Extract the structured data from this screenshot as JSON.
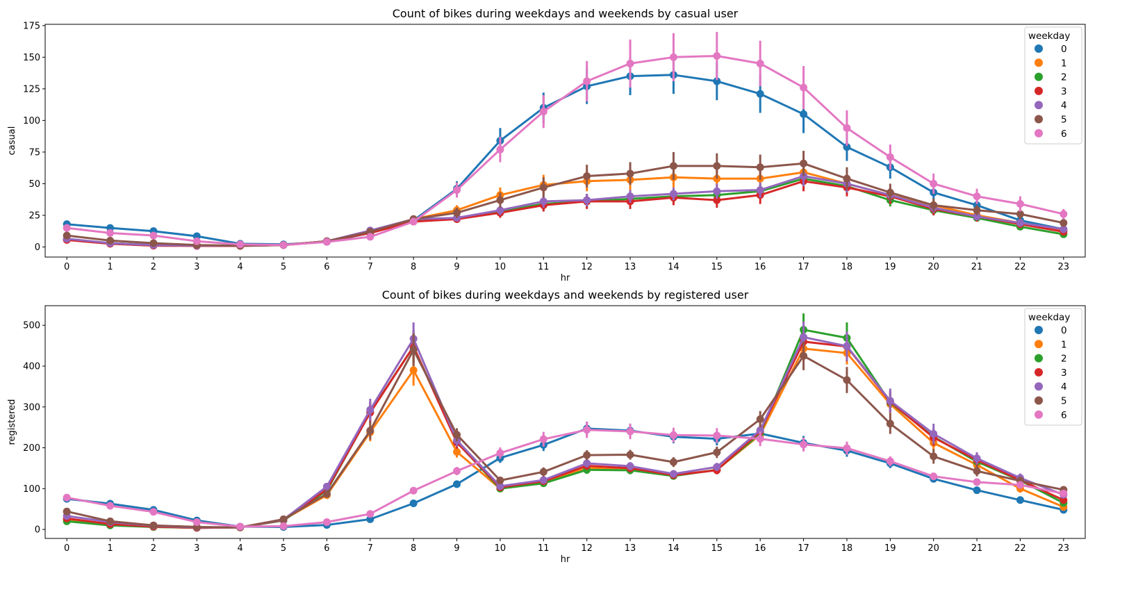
{
  "chart_data": [
    {
      "type": "line",
      "title": "Count of bikes during weekdays and weekends by casual user",
      "xlabel": "hr",
      "ylabel": "casual",
      "categories": [
        "0",
        "1",
        "2",
        "3",
        "4",
        "5",
        "6",
        "7",
        "8",
        "9",
        "10",
        "11",
        "12",
        "13",
        "14",
        "15",
        "16",
        "17",
        "18",
        "19",
        "20",
        "21",
        "22",
        "23"
      ],
      "ylim": [
        -8,
        176
      ],
      "yticks": [
        "0",
        "25",
        "50",
        "75",
        "100",
        "125",
        "150",
        "175"
      ],
      "grid": false,
      "legend": {
        "title": "weekday",
        "position": "top-right"
      },
      "series": [
        {
          "name": "0",
          "color": "#1f77b4",
          "values": [
            18,
            15,
            12.5,
            8.5,
            2.5,
            2,
            4,
            11,
            21,
            46,
            84,
            110,
            127,
            135,
            136,
            131,
            121,
            105,
            79,
            63,
            43,
            33,
            21,
            14
          ],
          "err": [
            2,
            1.5,
            1.5,
            1.5,
            0.8,
            0.8,
            1,
            2,
            3,
            6,
            10,
            12,
            14,
            15,
            15,
            15,
            15,
            15,
            11,
            9,
            6,
            5,
            4,
            3
          ]
        },
        {
          "name": "1",
          "color": "#ff7f0e",
          "values": [
            6,
            3,
            1.5,
            1,
            1,
            1.5,
            4.5,
            12,
            22,
            29,
            41,
            49,
            52,
            53,
            55,
            54,
            54,
            59,
            50,
            41,
            33,
            25,
            19,
            13
          ],
          "err": [
            1,
            1,
            0.6,
            0.5,
            0.5,
            0.5,
            0.8,
            2,
            3,
            4,
            6,
            8,
            8,
            8,
            8,
            8,
            8,
            9,
            8,
            6,
            5,
            4,
            3,
            2
          ]
        },
        {
          "name": "2",
          "color": "#2ca02c",
          "values": [
            6,
            3,
            1.5,
            1,
            1,
            1.5,
            4.5,
            11,
            21,
            23,
            28,
            34,
            36,
            38,
            40,
            41,
            44,
            54,
            48,
            37,
            29,
            23,
            16,
            10
          ],
          "err": [
            1,
            1,
            0.6,
            0.5,
            0.5,
            0.5,
            0.8,
            2,
            3,
            3,
            4,
            5,
            5,
            5,
            5,
            5,
            6,
            7,
            6,
            5,
            4,
            3,
            2,
            2
          ]
        },
        {
          "name": "3",
          "color": "#d62728",
          "values": [
            5.5,
            2.5,
            1,
            0.8,
            0.8,
            1.5,
            4.5,
            11,
            20,
            22,
            27,
            33,
            36,
            36,
            39,
            37,
            41,
            52,
            47,
            40,
            30,
            24,
            18,
            12
          ],
          "err": [
            1,
            1,
            0.6,
            0.5,
            0.5,
            0.5,
            0.8,
            2,
            3,
            3,
            4,
            5,
            6,
            6,
            6,
            6,
            7,
            8,
            7,
            6,
            5,
            4,
            3,
            2
          ]
        },
        {
          "name": "4",
          "color": "#9467bd",
          "values": [
            6.5,
            3,
            1.5,
            1,
            1,
            1.5,
            4.5,
            13,
            22,
            23,
            29,
            36,
            37,
            40,
            42,
            44,
            45,
            56,
            50,
            41,
            31,
            24,
            19,
            14
          ],
          "err": [
            1,
            1,
            0.6,
            0.5,
            0.5,
            0.5,
            0.8,
            2,
            3,
            3,
            4,
            5,
            5,
            5,
            5,
            6,
            6,
            8,
            7,
            5,
            4,
            3,
            3,
            2
          ]
        },
        {
          "name": "5",
          "color": "#8c564b",
          "values": [
            9,
            5,
            3,
            1.5,
            1,
            1.5,
            4.5,
            12,
            22,
            27,
            37,
            47,
            56,
            58,
            64,
            64,
            63,
            66,
            54,
            43,
            33,
            29,
            26,
            19
          ],
          "err": [
            1.5,
            1,
            0.8,
            0.6,
            0.5,
            0.5,
            0.8,
            2,
            3,
            4,
            6,
            8,
            9,
            9,
            11,
            10,
            10,
            10,
            9,
            7,
            5,
            4,
            4,
            3
          ]
        },
        {
          "name": "6",
          "color": "#e377c2",
          "values": [
            15,
            11,
            9,
            4.5,
            2,
            1.5,
            4,
            8,
            20,
            45,
            77,
            107,
            131,
            145,
            150,
            151,
            145,
            126,
            94,
            71,
            50,
            40,
            34,
            26
          ],
          "err": [
            2,
            2,
            1.5,
            1,
            0.8,
            0.8,
            1,
            2,
            3,
            6,
            10,
            13,
            16,
            19,
            19,
            19,
            18,
            17,
            14,
            10,
            8,
            6,
            6,
            4
          ]
        }
      ]
    },
    {
      "type": "line",
      "title": "Count of bikes during weekdays and weekends by registered user",
      "xlabel": "hr",
      "ylabel": "registered",
      "categories": [
        "0",
        "1",
        "2",
        "3",
        "4",
        "5",
        "6",
        "7",
        "8",
        "9",
        "10",
        "11",
        "12",
        "13",
        "14",
        "15",
        "16",
        "17",
        "18",
        "19",
        "20",
        "21",
        "22",
        "23"
      ],
      "ylim": [
        -22,
        548
      ],
      "yticks": [
        "0",
        "100",
        "200",
        "300",
        "400",
        "500"
      ],
      "grid": false,
      "legend": {
        "title": "weekday",
        "position": "top-right"
      },
      "series": [
        {
          "name": "0",
          "color": "#1f77b4",
          "values": [
            75,
            63,
            48,
            22,
            7,
            6,
            11,
            25,
            64,
            111,
            175,
            207,
            247,
            242,
            227,
            222,
            235,
            212,
            193,
            162,
            124,
            96,
            72,
            48
          ],
          "err": [
            5,
            4,
            4,
            3,
            1,
            1,
            2,
            3,
            5,
            9,
            12,
            15,
            17,
            17,
            16,
            16,
            18,
            17,
            15,
            12,
            9,
            7,
            6,
            4
          ]
        },
        {
          "name": "1",
          "color": "#ff7f0e",
          "values": [
            24,
            12,
            6,
            4,
            5,
            24,
            84,
            238,
            390,
            190,
            100,
            115,
            150,
            150,
            132,
            146,
            232,
            443,
            432,
            307,
            212,
            158,
            100,
            55
          ],
          "err": [
            4,
            2,
            1,
            1,
            1,
            3,
            8,
            22,
            38,
            14,
            8,
            9,
            10,
            10,
            9,
            10,
            16,
            30,
            28,
            24,
            18,
            12,
            10,
            6
          ]
        },
        {
          "name": "2",
          "color": "#2ca02c",
          "values": [
            20,
            10,
            6,
            4,
            5,
            22,
            95,
            287,
            448,
            214,
            100,
            113,
            146,
            145,
            131,
            146,
            235,
            489,
            469,
            311,
            227,
            166,
            120,
            65
          ],
          "err": [
            4,
            2,
            1,
            1,
            1,
            3,
            8,
            25,
            40,
            15,
            8,
            9,
            10,
            10,
            9,
            10,
            16,
            40,
            38,
            26,
            20,
            15,
            11,
            7
          ]
        },
        {
          "name": "3",
          "color": "#d62728",
          "values": [
            27,
            13,
            7,
            4,
            5,
            23,
            98,
            286,
            448,
            213,
            103,
            118,
            156,
            150,
            133,
            145,
            240,
            460,
            448,
            313,
            225,
            170,
            121,
            72
          ],
          "err": [
            4,
            2,
            1,
            1,
            1,
            3,
            8,
            25,
            40,
            15,
            8,
            9,
            10,
            10,
            9,
            10,
            16,
            38,
            36,
            26,
            20,
            15,
            11,
            7
          ]
        },
        {
          "name": "4",
          "color": "#9467bd",
          "values": [
            33,
            18,
            9,
            5,
            5,
            24,
            105,
            293,
            467,
            218,
            106,
            121,
            162,
            155,
            136,
            153,
            243,
            471,
            449,
            315,
            234,
            174,
            126,
            85
          ],
          "err": [
            4,
            2,
            1,
            1,
            1,
            3,
            8,
            27,
            40,
            15,
            8,
            9,
            10,
            10,
            9,
            10,
            16,
            38,
            36,
            30,
            25,
            15,
            11,
            7
          ]
        },
        {
          "name": "5",
          "color": "#8c564b",
          "values": [
            44,
            20,
            10,
            6,
            5,
            25,
            87,
            242,
            440,
            232,
            120,
            141,
            182,
            183,
            165,
            189,
            270,
            425,
            366,
            259,
            179,
            143,
            119,
            97
          ],
          "err": [
            5,
            3,
            1.5,
            1,
            1,
            3,
            8,
            22,
            40,
            16,
            9,
            11,
            12,
            12,
            12,
            14,
            20,
            35,
            32,
            25,
            18,
            13,
            10,
            8
          ]
        },
        {
          "name": "6",
          "color": "#e377c2",
          "values": [
            78,
            58,
            43,
            18,
            7,
            8,
            18,
            38,
            95,
            143,
            187,
            221,
            244,
            240,
            231,
            230,
            222,
            208,
            199,
            167,
            130,
            116,
            109,
            88
          ],
          "err": [
            5,
            4,
            3,
            2,
            1,
            1,
            2,
            3,
            6,
            10,
            14,
            18,
            20,
            19,
            18,
            18,
            18,
            17,
            16,
            12,
            9,
            8,
            8,
            7
          ]
        }
      ]
    }
  ]
}
